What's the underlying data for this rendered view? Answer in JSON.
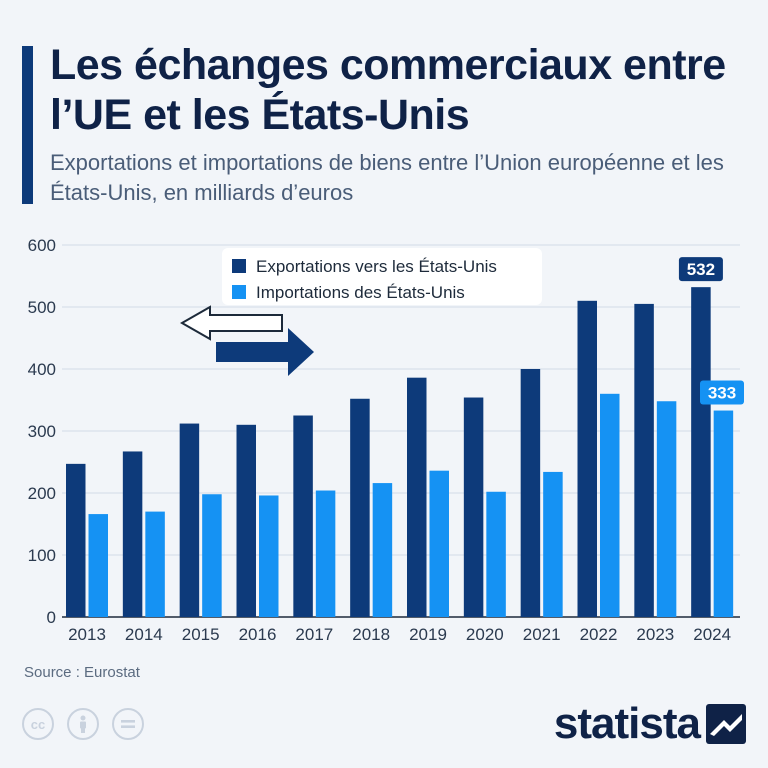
{
  "header": {
    "title": "Les échanges commerciaux entre l’UE et les États-Unis",
    "subtitle": "Exportations et importations de biens entre l’Union européenne et les États-Unis, en milliards d’euros"
  },
  "chart_data": {
    "type": "bar",
    "title": "Les échanges commerciaux entre l’UE et les États-Unis",
    "xlabel": "",
    "ylabel": "",
    "ylim": [
      0,
      600
    ],
    "yticks": [
      0,
      100,
      200,
      300,
      400,
      500,
      600
    ],
    "grid": true,
    "legend_position": "top-left",
    "categories": [
      "2013",
      "2014",
      "2015",
      "2016",
      "2017",
      "2018",
      "2019",
      "2020",
      "2021",
      "2022",
      "2023",
      "2024"
    ],
    "series": [
      {
        "name": "Exportations vers les États-Unis",
        "color": "#0d3a7a",
        "values": [
          247,
          267,
          312,
          310,
          325,
          352,
          386,
          354,
          400,
          510,
          505,
          532
        ]
      },
      {
        "name": "Importations des États-Unis",
        "color": "#1592f3",
        "values": [
          166,
          170,
          198,
          196,
          204,
          216,
          236,
          202,
          234,
          360,
          348,
          333
        ]
      }
    ],
    "data_labels": [
      {
        "series": 0,
        "category": "2024",
        "text": "532"
      },
      {
        "series": 1,
        "category": "2024",
        "text": "333"
      }
    ]
  },
  "footer": {
    "source": "Source : Eurostat",
    "license_icons": [
      "cc-icon",
      "attribution-icon",
      "no-derivatives-icon"
    ],
    "brand": "statista"
  }
}
